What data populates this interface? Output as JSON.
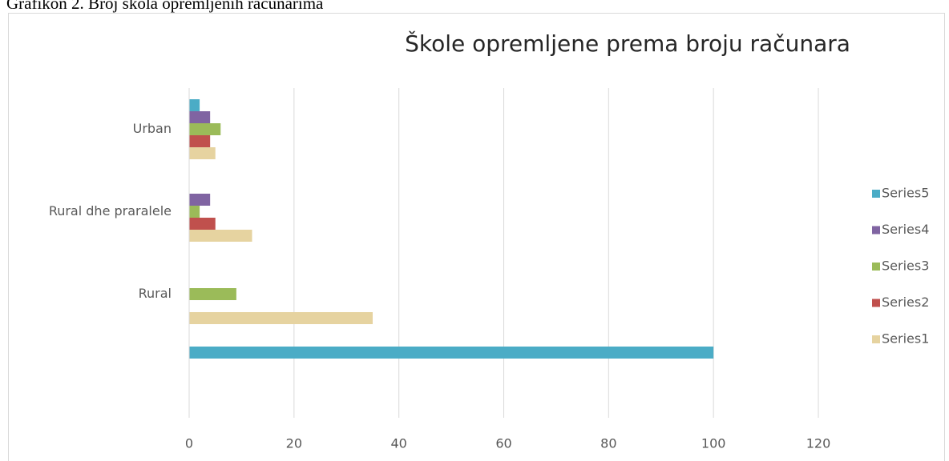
{
  "caption": "Grafikon 2. Broj škola opremljenih računarima",
  "chart_data": {
    "type": "hbar",
    "title": "Škole opremljene prema broju računara",
    "categories": [
      null,
      "Rural",
      "Rural dhe praralele",
      "Urban"
    ],
    "series": [
      {
        "name": "Series1",
        "color": "#e6d3a0",
        "values": [
          0,
          35,
          12,
          5
        ]
      },
      {
        "name": "Series2",
        "color": "#c0504d",
        "values": [
          0,
          0,
          5,
          4
        ]
      },
      {
        "name": "Series3",
        "color": "#9bbb59",
        "values": [
          0,
          9,
          2,
          6
        ]
      },
      {
        "name": "Series4",
        "color": "#8064a2",
        "values": [
          0,
          0,
          4,
          4
        ]
      },
      {
        "name": "Series5",
        "color": "#4bacc6",
        "values": [
          100,
          0,
          0,
          2
        ]
      }
    ],
    "xlim": [
      0,
      120
    ],
    "xticks": [
      0,
      20,
      40,
      60,
      80,
      100,
      120
    ],
    "grid": true,
    "legend": "right"
  }
}
